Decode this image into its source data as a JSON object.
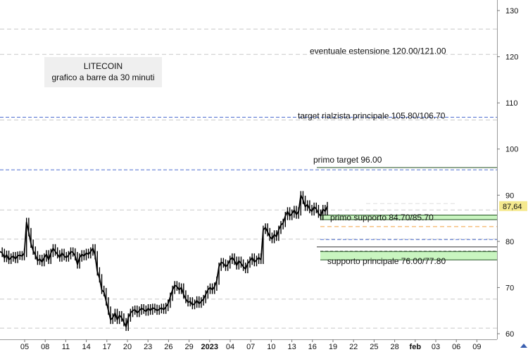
{
  "chart_data": {
    "type": "line",
    "title": "LITECOIN",
    "subtitle": "grafico a barre da 30 minuti",
    "ylim": [
      59,
      132
    ],
    "yticks": [
      60,
      70,
      80,
      90,
      100,
      110,
      120,
      130
    ],
    "last_price": 87.64,
    "last_price_label": "87,64",
    "xtick_labels": [
      "05",
      "08",
      "11",
      "14",
      "17",
      "20",
      "23",
      "26",
      "29",
      "2023",
      "04",
      "07",
      "10",
      "13",
      "16",
      "19",
      "22",
      "25",
      "28",
      "feb",
      "03",
      "06",
      "09"
    ],
    "price_series": [
      [
        0,
        77.8
      ],
      [
        1,
        77.5
      ],
      [
        2,
        76.4
      ],
      [
        3,
        77.1
      ],
      [
        4,
        76.0
      ],
      [
        5,
        76.5
      ],
      [
        6,
        76.8
      ],
      [
        7,
        76.2
      ],
      [
        8,
        76.9
      ],
      [
        9,
        77.0
      ],
      [
        10,
        76.8
      ],
      [
        11,
        77.5
      ],
      [
        12,
        84.2
      ],
      [
        13,
        82.0
      ],
      [
        14,
        79.5
      ],
      [
        15,
        78.0
      ],
      [
        16,
        77.0
      ],
      [
        17,
        75.8
      ],
      [
        18,
        76.2
      ],
      [
        19,
        75.5
      ],
      [
        20,
        76.5
      ],
      [
        21,
        77.2
      ],
      [
        22,
        76.0
      ],
      [
        23,
        77.5
      ],
      [
        24,
        78.5
      ],
      [
        25,
        77.8
      ],
      [
        26,
        77.2
      ],
      [
        27,
        76.5
      ],
      [
        28,
        77.5
      ],
      [
        29,
        76.8
      ],
      [
        30,
        76.5
      ],
      [
        31,
        77.0
      ],
      [
        32,
        77.8
      ],
      [
        33,
        77.6
      ],
      [
        34,
        76.8
      ],
      [
        35,
        75.0
      ],
      [
        36,
        76.5
      ],
      [
        37,
        77.2
      ],
      [
        38,
        76.8
      ],
      [
        39,
        77.5
      ],
      [
        40,
        77.2
      ],
      [
        41,
        77.8
      ],
      [
        42,
        78.5
      ],
      [
        43,
        77.0
      ],
      [
        44,
        73.5
      ],
      [
        45,
        72.0
      ],
      [
        46,
        69.5
      ],
      [
        47,
        69.0
      ],
      [
        48,
        67.0
      ],
      [
        49,
        65.0
      ],
      [
        50,
        63.0
      ],
      [
        51,
        63.5
      ],
      [
        52,
        64.5
      ],
      [
        53,
        63.0
      ],
      [
        54,
        64.0
      ],
      [
        55,
        63.5
      ],
      [
        56,
        62.5
      ],
      [
        57,
        61.5
      ],
      [
        58,
        63.5
      ],
      [
        59,
        64.5
      ],
      [
        60,
        65.0
      ],
      [
        61,
        65.2
      ],
      [
        62,
        64.5
      ],
      [
        63,
        65.0
      ],
      [
        64,
        65.5
      ],
      [
        65,
        65.2
      ],
      [
        66,
        64.8
      ],
      [
        67,
        65.5
      ],
      [
        68,
        65.0
      ],
      [
        69,
        65.6
      ],
      [
        70,
        65.4
      ],
      [
        71,
        65.0
      ],
      [
        72,
        65.3
      ],
      [
        73,
        65.6
      ],
      [
        74,
        65.2
      ],
      [
        75,
        65.8
      ],
      [
        76,
        66.5
      ],
      [
        77,
        68.0
      ],
      [
        78,
        69.5
      ],
      [
        79,
        70.5
      ],
      [
        80,
        70.2
      ],
      [
        81,
        69.5
      ],
      [
        82,
        70.0
      ],
      [
        83,
        68.5
      ],
      [
        84,
        67.5
      ],
      [
        85,
        66.8
      ],
      [
        86,
        67.0
      ],
      [
        87,
        66.2
      ],
      [
        88,
        66.5
      ],
      [
        89,
        67.2
      ],
      [
        90,
        66.5
      ],
      [
        91,
        67.0
      ],
      [
        92,
        67.5
      ],
      [
        93,
        68.5
      ],
      [
        94,
        69.5
      ],
      [
        95,
        70.0
      ],
      [
        96,
        69.5
      ],
      [
        97,
        70.2
      ],
      [
        98,
        71.5
      ],
      [
        99,
        74.5
      ],
      [
        100,
        75.5
      ],
      [
        101,
        75.2
      ],
      [
        102,
        74.5
      ],
      [
        103,
        75.0
      ],
      [
        104,
        76.0
      ],
      [
        105,
        76.5
      ],
      [
        106,
        75.8
      ],
      [
        107,
        74.8
      ],
      [
        108,
        75.8
      ],
      [
        109,
        75.2
      ],
      [
        110,
        74.5
      ],
      [
        111,
        74.0
      ],
      [
        112,
        75.2
      ],
      [
        113,
        75.8
      ],
      [
        114,
        76.5
      ],
      [
        115,
        75.5
      ],
      [
        116,
        76.0
      ],
      [
        117,
        76.5
      ],
      [
        118,
        76.0
      ],
      [
        119,
        82.5
      ],
      [
        120,
        83.0
      ],
      [
        121,
        82.0
      ],
      [
        122,
        81.0
      ],
      [
        123,
        80.5
      ],
      [
        124,
        81.5
      ],
      [
        125,
        81.0
      ],
      [
        126,
        82.5
      ],
      [
        127,
        83.5
      ],
      [
        128,
        84.0
      ],
      [
        129,
        85.5
      ],
      [
        130,
        86.5
      ],
      [
        131,
        85.5
      ],
      [
        132,
        86.0
      ],
      [
        133,
        86.8
      ],
      [
        134,
        85.8
      ],
      [
        135,
        86.5
      ],
      [
        136,
        90.0
      ],
      [
        137,
        89.0
      ],
      [
        138,
        87.5
      ],
      [
        139,
        88.0
      ],
      [
        140,
        87.0
      ],
      [
        141,
        86.5
      ],
      [
        142,
        87.5
      ],
      [
        143,
        87.0
      ],
      [
        144,
        86.0
      ],
      [
        145,
        85.5
      ],
      [
        146,
        87.0
      ],
      [
        147,
        86.5
      ],
      [
        148,
        87.64
      ]
    ],
    "levels": [
      {
        "label": "eventuale estensione 120.00/121.00",
        "low": 120.0,
        "high": 121.0
      },
      {
        "label": "target rialzista principale 105.80/106.70",
        "low": 105.8,
        "high": 106.7
      },
      {
        "label": "primo target 96.00",
        "low": 96.0,
        "high": 96.0
      },
      {
        "label": "primo supporto 84.70/85.70",
        "low": 84.7,
        "high": 85.7
      },
      {
        "label": "supporto principale 76.00/77.80",
        "low": 76.0,
        "high": 77.8
      }
    ],
    "colors": {
      "price": "#000000",
      "zone_fill": "#c9f5c0",
      "zone_line": "#1f4f1f",
      "dashed_blue": "#4f6fd0",
      "dashed_gray": "#c8c8c8",
      "dashed_orange": "#f0a040",
      "price_tag": "#f5e98e"
    }
  }
}
